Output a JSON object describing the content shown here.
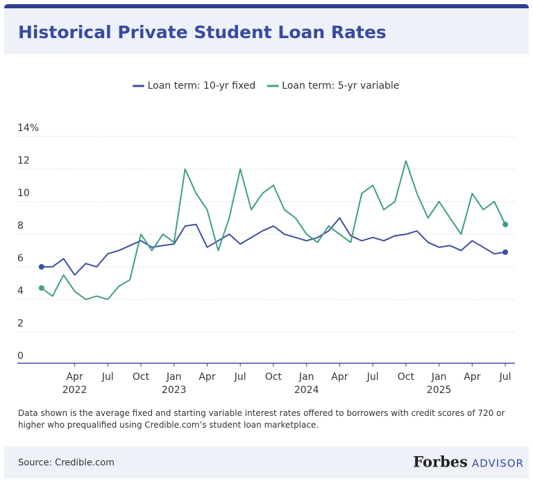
{
  "chart_data": {
    "type": "line",
    "title": "Historical Private Student Loan Rates",
    "x": [
      "2022-01",
      "2022-02",
      "2022-03",
      "2022-04",
      "2022-05",
      "2022-06",
      "2022-07",
      "2022-08",
      "2022-09",
      "2022-10",
      "2022-11",
      "2022-12",
      "2023-01",
      "2023-02",
      "2023-03",
      "2023-04",
      "2023-05",
      "2023-06",
      "2023-07",
      "2023-08",
      "2023-09",
      "2023-10",
      "2023-11",
      "2023-12",
      "2024-01",
      "2024-02",
      "2024-03",
      "2024-04",
      "2024-05",
      "2024-06",
      "2024-07",
      "2024-08",
      "2024-09",
      "2024-10",
      "2024-11",
      "2024-12",
      "2025-01",
      "2025-02",
      "2025-03",
      "2025-04",
      "2025-05",
      "2025-06",
      "2025-07"
    ],
    "series": [
      {
        "name": "Loan term: 10-yr fixed",
        "color": "#3d4fa0",
        "values": [
          6.0,
          6.0,
          6.5,
          5.5,
          6.2,
          6.0,
          6.8,
          7.0,
          7.3,
          7.6,
          7.2,
          7.3,
          7.4,
          8.5,
          8.6,
          7.2,
          7.6,
          8.0,
          7.4,
          7.8,
          8.2,
          8.5,
          8.0,
          7.8,
          7.6,
          7.8,
          8.2,
          9.0,
          7.9,
          7.6,
          7.8,
          7.6,
          7.9,
          8.0,
          8.2,
          7.5,
          7.2,
          7.3,
          7.0,
          7.6,
          7.2,
          6.8,
          6.9
        ]
      },
      {
        "name": "Loan term: 5-yr variable",
        "color": "#3e9e84",
        "values": [
          4.7,
          4.2,
          5.5,
          4.5,
          4.0,
          4.2,
          4.0,
          4.8,
          5.2,
          8.0,
          7.0,
          8.0,
          7.5,
          12.0,
          10.5,
          9.5,
          7.0,
          9.0,
          12.0,
          9.5,
          10.5,
          11.0,
          9.5,
          9.0,
          8.0,
          7.5,
          8.5,
          8.0,
          7.5,
          10.5,
          11.0,
          9.5,
          10.0,
          12.5,
          10.5,
          9.0,
          10.0,
          9.0,
          8.0,
          10.5,
          9.5,
          10.0,
          8.6
        ]
      }
    ],
    "xlim": [
      "2021-11",
      "2025-08"
    ],
    "xticks": [
      {
        "value": "2022-04",
        "label": "Apr",
        "year": "2022"
      },
      {
        "value": "2022-07",
        "label": "Jul"
      },
      {
        "value": "2022-10",
        "label": "Oct"
      },
      {
        "value": "2023-01",
        "label": "Jan",
        "year": "2023"
      },
      {
        "value": "2023-04",
        "label": "Apr"
      },
      {
        "value": "2023-07",
        "label": "Jul"
      },
      {
        "value": "2023-10",
        "label": "Oct"
      },
      {
        "value": "2024-01",
        "label": "Jan",
        "year": "2024"
      },
      {
        "value": "2024-04",
        "label": "Apr"
      },
      {
        "value": "2024-07",
        "label": "Jul"
      },
      {
        "value": "2024-10",
        "label": "Oct"
      },
      {
        "value": "2025-01",
        "label": "Jan",
        "year": "2025"
      },
      {
        "value": "2025-04",
        "label": "Apr"
      },
      {
        "value": "2025-07",
        "label": "Jul"
      }
    ],
    "ylim": [
      0,
      16.5
    ],
    "yticks": [
      0,
      2,
      4,
      6,
      8,
      10,
      12,
      {
        "value": 14,
        "label": "14%"
      }
    ],
    "grid": true,
    "legend": "top",
    "footnote": "Data shown is the average fixed and starting variable interest rates offered to borrowers with credit scores of 720 or higher who prequalified using Credible.com’s student loan marketplace.",
    "source": "Source: Credible.com",
    "brand": {
      "name": "Forbes",
      "product": "ADVISOR"
    }
  }
}
